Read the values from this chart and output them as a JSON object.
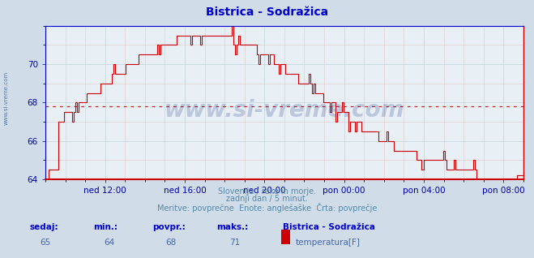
{
  "title": "Bistrica - Sodražica",
  "bg_color": "#d0dde8",
  "plot_bg_color": "#e8eff5",
  "line_color": "#cc0000",
  "avg_value": 67.8,
  "ylim": [
    64,
    72
  ],
  "yticks": [
    64,
    66,
    68,
    70
  ],
  "xlabel_color": "#0000aa",
  "ylabel_color": "#0000aa",
  "title_color": "#0000cc",
  "grid_color": "#c8d8e0",
  "grid_color_minor": "#ddc8c8",
  "xtick_labels": [
    "ned 12:00",
    "ned 16:00",
    "ned 20:00",
    "pon 00:00",
    "pon 04:00",
    "pon 08:00"
  ],
  "xtick_positions": [
    3,
    7,
    11,
    15,
    19,
    23
  ],
  "xlim": [
    0,
    24
  ],
  "subtitle1": "Slovenija / reke in morje.",
  "subtitle2": "zadnji dan / 5 minut.",
  "subtitle3": "Meritve: povprečne  Enote: anglešaške  Črta: povprečje",
  "subtitle_color": "#5588aa",
  "footer_label_color": "#0000cc",
  "footer_value_color": "#4466aa",
  "sedaj": 65,
  "min_val": 64,
  "povpr": 68,
  "maks": 71,
  "legend_title": "Bistrica - Sodražica",
  "legend_item": "temperatura[F]",
  "legend_color": "#cc0000",
  "watermark": "www.si-vreme.com",
  "watermark_color": "#1a3a8a",
  "left_label": "www.si-vreme.com",
  "left_label_color": "#5577aa",
  "spine_color": "#0000cc",
  "bottom_spine_color": "#cc0000"
}
